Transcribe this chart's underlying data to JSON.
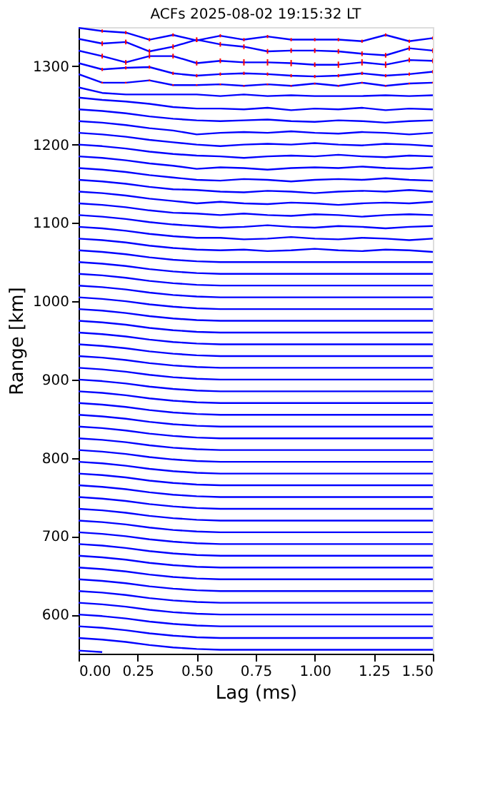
{
  "chart_data": {
    "type": "line",
    "title": "ACFs 2025-08-02 19:15:32 LT",
    "xlabel": "Lag (ms)",
    "ylabel": "Range [km]",
    "x": [
      0,
      0.1,
      0.2,
      0.3,
      0.4,
      0.5,
      0.6,
      0.7,
      0.8,
      0.9,
      1.0,
      1.1,
      1.2,
      1.3,
      1.4,
      1.5
    ],
    "xlim": [
      0,
      1.5
    ],
    "ylim": [
      550,
      1350
    ],
    "xticks": [
      {
        "value": 0,
        "label": "0.00"
      },
      {
        "value": 0.25,
        "label": "0.25"
      },
      {
        "value": 0.5,
        "label": "0.50"
      },
      {
        "value": 0.75,
        "label": "0.75"
      },
      {
        "value": 1.0,
        "label": "1.00"
      },
      {
        "value": 1.25,
        "label": "1.25"
      },
      {
        "value": 1.5,
        "label": "1.50"
      }
    ],
    "yticks": [
      600,
      700,
      800,
      900,
      1000,
      1100,
      1200,
      1300
    ],
    "grid": false,
    "legend": false,
    "marker": "none",
    "line_style": "solid",
    "series": [
      {
        "color": "#0000ff",
        "values": [
          554,
          552,
          null,
          null,
          null,
          null,
          null,
          null,
          null,
          null,
          null,
          null,
          null,
          null,
          null,
          null
        ]
      },
      {
        "color": "#0000ff",
        "values": [
          570,
          568,
          565,
          561,
          558,
          556,
          555,
          555,
          555,
          555,
          555,
          555,
          555,
          555,
          555,
          555
        ]
      },
      {
        "color": "#0000ff",
        "values": [
          585,
          583,
          580,
          576,
          573,
          571,
          570,
          570,
          570,
          570,
          570,
          570,
          570,
          570,
          570,
          570
        ]
      },
      {
        "color": "#0000ff",
        "values": [
          600,
          598,
          595,
          591,
          588,
          586,
          585,
          585,
          585,
          585,
          585,
          585,
          585,
          585,
          585,
          585
        ]
      },
      {
        "color": "#0000ff",
        "values": [
          615,
          613,
          610,
          606,
          603,
          601,
          600,
          600,
          600,
          600,
          600,
          600,
          600,
          600,
          600,
          600
        ]
      },
      {
        "color": "#0000ff",
        "values": [
          630,
          628,
          625,
          621,
          618,
          616,
          615,
          615,
          615,
          615,
          615,
          615,
          615,
          615,
          615,
          615
        ]
      },
      {
        "color": "#0000ff",
        "values": [
          645,
          643,
          640,
          636,
          633,
          631,
          630,
          630,
          630,
          630,
          630,
          630,
          630,
          630,
          630,
          630
        ]
      },
      {
        "color": "#0000ff",
        "values": [
          660,
          658,
          655,
          651,
          648,
          646,
          645,
          645,
          645,
          645,
          645,
          645,
          645,
          645,
          645,
          645
        ]
      },
      {
        "color": "#0000ff",
        "values": [
          675,
          673,
          670,
          666,
          663,
          661,
          660,
          660,
          660,
          660,
          660,
          660,
          660,
          660,
          660,
          660
        ]
      },
      {
        "color": "#0000ff",
        "values": [
          690,
          688,
          685,
          681,
          678,
          676,
          675,
          675,
          675,
          675,
          675,
          675,
          675,
          675,
          675,
          675
        ]
      },
      {
        "color": "#0000ff",
        "values": [
          705,
          703,
          700,
          696,
          693,
          691,
          690,
          690,
          690,
          690,
          690,
          690,
          690,
          690,
          690,
          690
        ]
      },
      {
        "color": "#0000ff",
        "values": [
          720,
          718,
          715,
          711,
          708,
          706,
          705,
          705,
          705,
          705,
          705,
          705,
          705,
          705,
          705,
          705
        ]
      },
      {
        "color": "#0000ff",
        "values": [
          735,
          733,
          730,
          726,
          723,
          721,
          720,
          720,
          720,
          720,
          720,
          720,
          720,
          720,
          720,
          720
        ]
      },
      {
        "color": "#0000ff",
        "values": [
          750,
          748,
          745,
          741,
          738,
          736,
          735,
          735,
          735,
          735,
          735,
          735,
          735,
          735,
          735,
          735
        ]
      },
      {
        "color": "#0000ff",
        "values": [
          765,
          763,
          760,
          756,
          753,
          751,
          750,
          750,
          750,
          750,
          750,
          750,
          750,
          750,
          750,
          750
        ]
      },
      {
        "color": "#0000ff",
        "values": [
          780,
          778,
          775,
          771,
          768,
          766,
          765,
          765,
          765,
          765,
          765,
          765,
          765,
          765,
          765,
          765
        ]
      },
      {
        "color": "#0000ff",
        "values": [
          795,
          793,
          790,
          786,
          783,
          781,
          780,
          780,
          780,
          780,
          780,
          780,
          780,
          780,
          780,
          780
        ]
      },
      {
        "color": "#0000ff",
        "values": [
          810,
          808,
          805,
          801,
          798,
          796,
          795,
          795,
          795,
          795,
          795,
          795,
          795,
          795,
          795,
          795
        ]
      },
      {
        "color": "#0000ff",
        "values": [
          825,
          823,
          820,
          816,
          813,
          811,
          810,
          810,
          810,
          810,
          810,
          810,
          810,
          810,
          810,
          810
        ]
      },
      {
        "color": "#0000ff",
        "values": [
          840,
          838,
          835,
          831,
          828,
          826,
          825,
          825,
          825,
          825,
          825,
          825,
          825,
          825,
          825,
          825
        ]
      },
      {
        "color": "#0000ff",
        "values": [
          855,
          853,
          850,
          846,
          843,
          841,
          840,
          840,
          840,
          840,
          840,
          840,
          840,
          840,
          840,
          840
        ]
      },
      {
        "color": "#0000ff",
        "values": [
          870,
          868,
          865,
          861,
          858,
          856,
          855,
          855,
          855,
          855,
          855,
          855,
          855,
          855,
          855,
          855
        ]
      },
      {
        "color": "#0000ff",
        "values": [
          885,
          883,
          880,
          876,
          873,
          871,
          870,
          870,
          870,
          870,
          870,
          870,
          870,
          870,
          870,
          870
        ]
      },
      {
        "color": "#0000ff",
        "values": [
          900,
          898,
          895,
          891,
          888,
          886,
          885,
          885,
          885,
          885,
          885,
          885,
          885,
          885,
          885,
          885
        ]
      },
      {
        "color": "#0000ff",
        "values": [
          915,
          913,
          910,
          906,
          903,
          901,
          900,
          900,
          900,
          900,
          900,
          900,
          900,
          900,
          900,
          900
        ]
      },
      {
        "color": "#0000ff",
        "values": [
          930,
          928,
          925,
          921,
          918,
          916,
          915,
          915,
          915,
          915,
          915,
          915,
          915,
          915,
          915,
          915
        ]
      },
      {
        "color": "#0000ff",
        "values": [
          945,
          943,
          940,
          936,
          933,
          931,
          930,
          930,
          930,
          930,
          930,
          930,
          930,
          930,
          930,
          930
        ]
      },
      {
        "color": "#0000ff",
        "values": [
          960,
          958,
          955,
          951,
          948,
          946,
          945,
          945,
          945,
          945,
          945,
          945,
          945,
          945,
          945,
          945
        ]
      },
      {
        "color": "#0000ff",
        "values": [
          975,
          973,
          970,
          966,
          963,
          961,
          960,
          960,
          960,
          960,
          960,
          960,
          960,
          960,
          960,
          960
        ]
      },
      {
        "color": "#0000ff",
        "values": [
          990,
          988,
          985,
          981,
          978,
          976,
          975,
          975,
          975,
          975,
          975,
          975,
          975,
          975,
          975,
          975
        ]
      },
      {
        "color": "#0000ff",
        "values": [
          1005,
          1003,
          1000,
          996,
          993,
          991,
          990,
          990,
          990,
          990,
          990,
          990,
          990,
          990,
          990,
          990
        ]
      },
      {
        "color": "#0000ff",
        "values": [
          1020,
          1018,
          1015,
          1011,
          1008,
          1006,
          1005,
          1005,
          1005,
          1005,
          1005,
          1005,
          1005,
          1005,
          1005,
          1005
        ]
      },
      {
        "color": "#0000ff",
        "values": [
          1035,
          1033,
          1030,
          1026,
          1023,
          1021,
          1020,
          1020,
          1020,
          1020,
          1020,
          1020,
          1020,
          1020,
          1020,
          1020
        ]
      },
      {
        "color": "#0000ff",
        "values": [
          1050,
          1048,
          1045,
          1041,
          1038,
          1036,
          1035,
          1035,
          1035,
          1035,
          1035,
          1035,
          1035,
          1035,
          1035,
          1035
        ]
      },
      {
        "color": "#0000ff",
        "values": [
          1065,
          1063,
          1060,
          1056,
          1053,
          1051,
          1050,
          1050,
          1050,
          1050,
          1050,
          1050,
          1050,
          1050,
          1050,
          1050
        ]
      },
      {
        "color": "#0000ff",
        "values": [
          1080,
          1078,
          1075,
          1071,
          1068,
          1066,
          1065,
          1066,
          1064,
          1065,
          1067,
          1065,
          1064,
          1066,
          1065,
          1063
        ]
      },
      {
        "color": "#0000ff",
        "values": [
          1095,
          1093,
          1090,
          1086,
          1083,
          1081,
          1081,
          1079,
          1080,
          1082,
          1080,
          1079,
          1081,
          1080,
          1078,
          1080
        ]
      },
      {
        "color": "#0000ff",
        "values": [
          1110,
          1108,
          1105,
          1101,
          1098,
          1096,
          1094,
          1095,
          1097,
          1095,
          1094,
          1096,
          1095,
          1093,
          1095,
          1096
        ]
      },
      {
        "color": "#0000ff",
        "values": [
          1125,
          1123,
          1120,
          1116,
          1113,
          1112,
          1110,
          1112,
          1110,
          1109,
          1111,
          1110,
          1108,
          1110,
          1111,
          1110
        ]
      },
      {
        "color": "#0000ff",
        "values": [
          1140,
          1138,
          1135,
          1131,
          1128,
          1125,
          1127,
          1125,
          1124,
          1126,
          1125,
          1123,
          1125,
          1126,
          1125,
          1127
        ]
      },
      {
        "color": "#0000ff",
        "values": [
          1155,
          1153,
          1150,
          1146,
          1143,
          1142,
          1140,
          1139,
          1141,
          1140,
          1138,
          1140,
          1141,
          1140,
          1142,
          1140
        ]
      },
      {
        "color": "#0000ff",
        "values": [
          1170,
          1168,
          1165,
          1161,
          1158,
          1155,
          1154,
          1156,
          1155,
          1153,
          1155,
          1156,
          1155,
          1157,
          1155,
          1154
        ]
      },
      {
        "color": "#0000ff",
        "values": [
          1185,
          1183,
          1180,
          1176,
          1173,
          1169,
          1171,
          1170,
          1168,
          1170,
          1171,
          1170,
          1172,
          1170,
          1169,
          1171
        ]
      },
      {
        "color": "#0000ff",
        "values": [
          1200,
          1198,
          1195,
          1191,
          1188,
          1186,
          1185,
          1183,
          1185,
          1186,
          1185,
          1187,
          1185,
          1184,
          1186,
          1185
        ]
      },
      {
        "color": "#0000ff",
        "values": [
          1215,
          1213,
          1210,
          1206,
          1203,
          1200,
          1198,
          1200,
          1201,
          1200,
          1202,
          1200,
          1199,
          1201,
          1200,
          1198
        ]
      },
      {
        "color": "#0000ff",
        "values": [
          1230,
          1228,
          1225,
          1221,
          1218,
          1213,
          1215,
          1216,
          1215,
          1217,
          1215,
          1214,
          1216,
          1215,
          1213,
          1215
        ]
      },
      {
        "color": "#0000ff",
        "values": [
          1245,
          1243,
          1240,
          1236,
          1233,
          1231,
          1230,
          1231,
          1232,
          1230,
          1229,
          1231,
          1230,
          1228,
          1230,
          1231
        ]
      },
      {
        "color": "#0000ff",
        "values": [
          1260,
          1257,
          1255,
          1252,
          1248,
          1246,
          1246,
          1245,
          1247,
          1244,
          1246,
          1245,
          1247,
          1244,
          1246,
          1245
        ]
      },
      {
        "color": "#0000ff",
        "values": [
          1273,
          1266,
          1264,
          1264,
          1264,
          1264,
          1262,
          1264,
          1262,
          1263,
          1262,
          1262,
          1262,
          1263,
          1262,
          1263
        ]
      },
      {
        "color": "#0000ff",
        "values": [
          1290,
          1279,
          1279,
          1282,
          1276,
          1276,
          1277,
          1275,
          1277,
          1275,
          1278,
          1275,
          1279,
          1275,
          1278,
          1279
        ],
        "errors": [
          null,
          1,
          1,
          1,
          1,
          1,
          1,
          1,
          1,
          1,
          1,
          1,
          1,
          1,
          1,
          1
        ]
      },
      {
        "color": "#0000ff",
        "values": [
          1304,
          1296,
          1298,
          1299,
          1291,
          1288,
          1290,
          1291,
          1290,
          1288,
          1287,
          1288,
          1291,
          1288,
          1290,
          1293
        ],
        "errors": [
          null,
          2,
          2,
          2,
          2,
          2,
          2,
          2,
          2,
          2,
          2,
          2,
          2,
          2,
          2,
          2
        ]
      },
      {
        "color": "#0000ff",
        "values": [
          1320,
          1313,
          1305,
          1313,
          1313,
          1304,
          1307,
          1305,
          1305,
          1304,
          1302,
          1302,
          1305,
          1302,
          1308,
          1307
        ],
        "errors": [
          null,
          3,
          3,
          3,
          3,
          3,
          3,
          4,
          4,
          4,
          3,
          4,
          4,
          4,
          3,
          3
        ]
      },
      {
        "color": "#0000ff",
        "values": [
          1335,
          1329,
          1331,
          1319,
          1325,
          1334,
          1328,
          1325,
          1319,
          1320,
          1320,
          1319,
          1316,
          1314,
          1323,
          1320
        ],
        "errors": [
          null,
          3,
          3,
          3,
          3,
          3,
          3,
          3,
          3,
          3,
          3,
          3,
          3,
          3,
          3,
          3
        ]
      },
      {
        "color": "#0000ff",
        "values": [
          1349,
          1345,
          1343,
          1334,
          1340,
          1333,
          1339,
          1334,
          1338,
          1334,
          1334,
          1334,
          1332,
          1340,
          1332,
          1336
        ],
        "errors": [
          null,
          2,
          2,
          2,
          2,
          2,
          2,
          2,
          2,
          2,
          2,
          2,
          2,
          2,
          2,
          2
        ]
      }
    ]
  }
}
